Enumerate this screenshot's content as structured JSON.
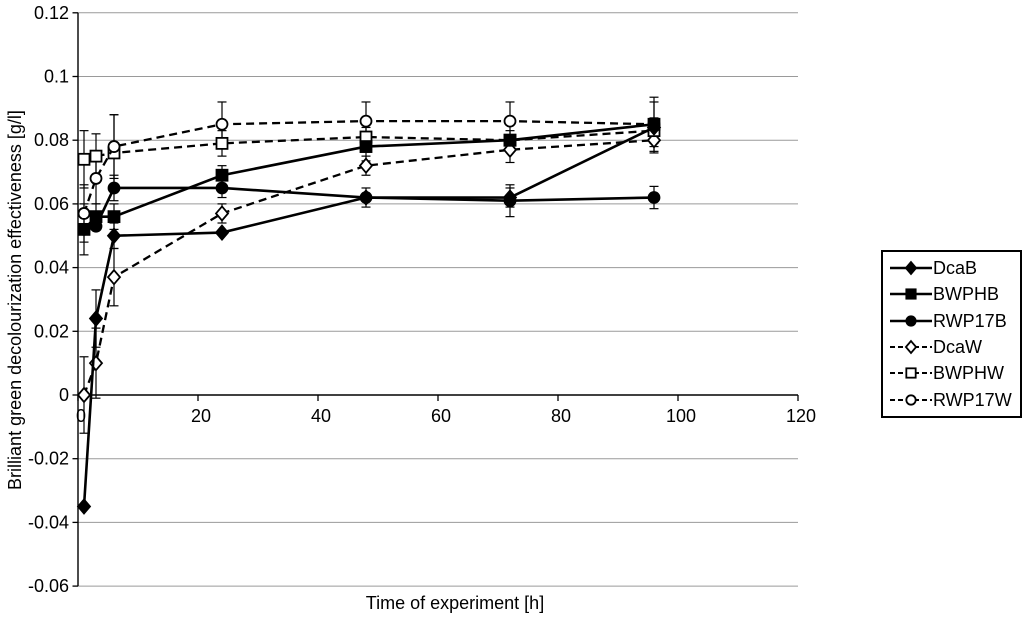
{
  "chart_data": {
    "type": "line",
    "title": "",
    "xlabel": "Time of experiment [h]",
    "ylabel": "Brilliant green decolourization effectiveness [g/l]",
    "x": [
      1,
      3,
      6,
      24,
      48,
      72,
      96
    ],
    "xlim": [
      0,
      120
    ],
    "ylim": [
      -0.06,
      0.12
    ],
    "x_ticks": [
      0,
      20,
      40,
      60,
      80,
      100,
      120
    ],
    "y_ticks": [
      0.12,
      0.1,
      0.08,
      0.06,
      0.04,
      0.02,
      0,
      -0.02,
      -0.04,
      -0.06
    ],
    "y_tick_labels": [
      "0.12",
      "0.1",
      "0.08",
      "0.06",
      "0.04",
      "0.02",
      "0",
      "-0.02",
      "-0.04",
      "-0.06"
    ],
    "grid": true,
    "legend_position": "right",
    "series": [
      {
        "name": "DcaB",
        "line": "solid",
        "marker": "diamond-filled",
        "values": [
          -0.035,
          0.024,
          0.05,
          0.051,
          0.062,
          0.062,
          0.084
        ],
        "err": [
          0,
          0.009,
          0.004,
          0,
          0,
          0.003,
          0
        ]
      },
      {
        "name": "BWPHB",
        "line": "solid",
        "marker": "square-filled",
        "values": [
          0.052,
          0.056,
          0.056,
          0.069,
          0.078,
          0.08,
          0.085
        ],
        "err": [
          0.008,
          0.004,
          0.004,
          0.003,
          0.0045,
          0.003,
          0.0085
        ]
      },
      {
        "name": "RWP17B",
        "line": "solid",
        "marker": "circle-filled",
        "values": [
          0.052,
          0.053,
          0.065,
          0.065,
          0.062,
          0.061,
          0.062
        ],
        "err": [
          0,
          0,
          0.004,
          0.003,
          0.003,
          0.005,
          0.0035
        ]
      },
      {
        "name": "DcaW",
        "line": "dashed",
        "marker": "diamond-open",
        "values": [
          0.0,
          0.01,
          0.037,
          0.057,
          0.072,
          0.077,
          0.08
        ],
        "err": [
          0.012,
          0.011,
          0.009,
          0.003,
          0.003,
          0.004,
          0.004
        ]
      },
      {
        "name": "BWPHW",
        "line": "dashed",
        "marker": "square-open",
        "values": [
          0.074,
          0.075,
          0.076,
          0.079,
          0.081,
          0.08,
          0.083
        ],
        "err": [
          0.009,
          0.007,
          0.012,
          0.004,
          0.003,
          0,
          0.004
        ]
      },
      {
        "name": "RWP17W",
        "line": "dashed",
        "marker": "circle-open",
        "values": [
          0.057,
          0.068,
          0.078,
          0.085,
          0.086,
          0.086,
          0.085
        ],
        "err": [
          0.009,
          0.008,
          0.01,
          0.007,
          0.006,
          0.006,
          0.007
        ]
      }
    ]
  },
  "colors": {
    "series": "#000000",
    "gridline": "#9a9a9a",
    "background": "#ffffff",
    "legend_border": "#000000"
  }
}
